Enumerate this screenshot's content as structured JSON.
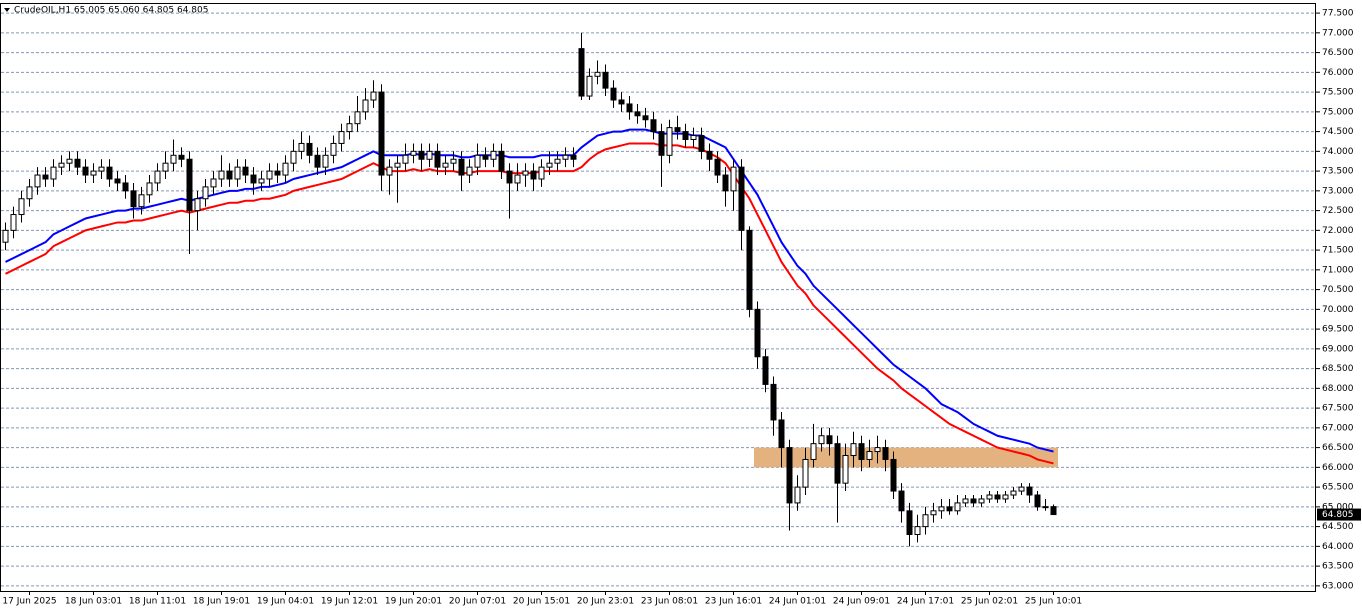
{
  "chart_data": {
    "type": "candlestick",
    "title": "CrudeOIL,H1  65.005 65.060 64.805 64.805",
    "categories": [
      null,
      null,
      null,
      "17 Jun 2025",
      null,
      null,
      null,
      null,
      null,
      null,
      null,
      "18 Jun 03:01",
      null,
      null,
      null,
      null,
      null,
      null,
      null,
      "18 Jun 11:01",
      null,
      null,
      null,
      null,
      null,
      null,
      null,
      "18 Jun 19:01",
      null,
      null,
      null,
      null,
      null,
      null,
      null,
      "19 Jun 04:01",
      null,
      null,
      null,
      null,
      null,
      null,
      null,
      "19 Jun 12:01",
      null,
      null,
      null,
      null,
      null,
      null,
      null,
      "19 Jun 20:01",
      null,
      null,
      null,
      null,
      null,
      null,
      null,
      "20 Jun 07:01",
      null,
      null,
      null,
      null,
      null,
      null,
      null,
      "20 Jun 15:01",
      null,
      null,
      null,
      null,
      null,
      null,
      null,
      "20 Jun 23:01",
      null,
      null,
      null,
      null,
      null,
      null,
      null,
      "23 Jun 08:01",
      null,
      null,
      null,
      null,
      null,
      null,
      null,
      "23 Jun 16:01",
      null,
      null,
      null,
      null,
      null,
      null,
      null,
      "24 Jun 01:01",
      null,
      null,
      null,
      null,
      null,
      null,
      null,
      "24 Jun 09:01",
      null,
      null,
      null,
      null,
      null,
      null,
      null,
      "24 Jun 17:01",
      null,
      null,
      null,
      null,
      null,
      null,
      null,
      "25 Jun 02:01",
      null,
      null,
      null,
      null,
      null,
      null,
      null,
      "25 Jun 10:01"
    ],
    "open": [
      71.7,
      72.0,
      72.4,
      72.8,
      73.1,
      73.4,
      73.3,
      73.6,
      73.7,
      73.8,
      73.6,
      73.4,
      73.5,
      73.6,
      73.3,
      73.2,
      73.0,
      72.6,
      72.9,
      73.2,
      73.5,
      73.7,
      73.9,
      73.8,
      72.5,
      72.8,
      73.1,
      73.3,
      73.5,
      73.3,
      73.6,
      73.4,
      73.2,
      73.3,
      73.5,
      73.4,
      73.7,
      74.0,
      74.2,
      73.9,
      73.6,
      73.9,
      74.2,
      74.5,
      74.7,
      75.0,
      75.3,
      75.5,
      73.4,
      73.6,
      73.7,
      73.9,
      74.0,
      73.8,
      74.0,
      73.6,
      73.7,
      73.8,
      73.4,
      73.6,
      73.9,
      73.8,
      74.0,
      73.5,
      73.2,
      73.4,
      73.5,
      73.3,
      73.6,
      73.7,
      73.8,
      73.9,
      76.6,
      75.4,
      75.9,
      76.0,
      75.6,
      75.3,
      75.2,
      75.0,
      74.9,
      74.8,
      74.5,
      73.9,
      74.6,
      74.5,
      74.3,
      74.4,
      74.0,
      73.8,
      73.4,
      73.0,
      73.6,
      72.0,
      70.0,
      68.8,
      68.1,
      67.2,
      66.5,
      65.1,
      65.5,
      66.2,
      66.6,
      66.8,
      66.6,
      65.6,
      66.3,
      66.6,
      66.2,
      66.4,
      66.5,
      66.2,
      65.4,
      64.9,
      64.3,
      64.5,
      64.8,
      64.9,
      65.0,
      64.9,
      65.1,
      65.2,
      65.1,
      65.2,
      65.3,
      65.2,
      65.3,
      65.4,
      65.5,
      65.3,
      65.0,
      65.005
    ],
    "high": [
      72.2,
      72.6,
      73.0,
      73.3,
      73.6,
      73.6,
      73.8,
      73.9,
      74.0,
      74.0,
      73.8,
      73.7,
      73.8,
      73.8,
      73.5,
      73.4,
      73.2,
      73.1,
      73.4,
      73.7,
      74.0,
      74.3,
      74.1,
      74.0,
      73.0,
      73.3,
      73.5,
      73.9,
      73.7,
      73.8,
      73.8,
      73.6,
      73.5,
      73.7,
      73.7,
      73.9,
      74.3,
      74.5,
      74.4,
      74.1,
      74.1,
      74.4,
      74.7,
      74.9,
      75.4,
      75.6,
      75.8,
      75.7,
      73.8,
      73.9,
      74.2,
      74.2,
      74.2,
      74.2,
      74.2,
      73.9,
      74.0,
      74.0,
      73.8,
      74.2,
      74.1,
      74.2,
      74.2,
      73.7,
      73.7,
      73.7,
      73.7,
      73.8,
      74.0,
      74.0,
      74.1,
      74.1,
      77.0,
      76.1,
      76.3,
      76.2,
      75.8,
      75.5,
      75.4,
      75.2,
      75.1,
      75.0,
      74.7,
      74.8,
      74.9,
      74.7,
      74.6,
      74.6,
      74.2,
      74.0,
      73.6,
      73.8,
      73.8,
      72.1,
      70.2,
      69.0,
      68.3,
      67.4,
      66.7,
      65.8,
      66.5,
      67.1,
      67.0,
      67.0,
      66.8,
      66.6,
      66.9,
      66.8,
      66.7,
      66.8,
      66.7,
      66.4,
      65.6,
      65.1,
      64.8,
      65.0,
      65.1,
      65.2,
      65.2,
      65.3,
      65.3,
      65.3,
      65.3,
      65.4,
      65.4,
      65.4,
      65.5,
      65.6,
      65.6,
      65.4,
      65.2,
      65.06
    ],
    "low": [
      71.5,
      71.8,
      72.2,
      72.6,
      72.9,
      73.1,
      73.1,
      73.4,
      73.5,
      73.4,
      73.2,
      73.2,
      73.3,
      73.1,
      73.0,
      72.8,
      72.3,
      72.4,
      72.7,
      73.0,
      73.3,
      73.5,
      73.6,
      71.4,
      72.0,
      72.6,
      72.9,
      73.1,
      73.1,
      73.1,
      73.2,
      72.9,
      73.0,
      73.1,
      73.2,
      73.2,
      73.5,
      73.8,
      73.7,
      73.4,
      73.4,
      73.7,
      74.0,
      74.3,
      74.5,
      74.8,
      75.1,
      73.0,
      72.9,
      72.7,
      73.5,
      73.7,
      73.5,
      73.6,
      73.4,
      73.4,
      73.5,
      73.0,
      73.2,
      73.4,
      73.6,
      73.6,
      73.3,
      72.3,
      73.0,
      73.1,
      73.0,
      73.1,
      73.4,
      73.5,
      73.6,
      73.6,
      75.3,
      75.3,
      75.7,
      75.4,
      75.1,
      75.0,
      74.8,
      74.7,
      74.6,
      74.3,
      73.1,
      73.7,
      74.3,
      74.1,
      74.1,
      73.8,
      73.5,
      73.2,
      72.6,
      72.5,
      71.5,
      69.8,
      68.5,
      67.9,
      66.8,
      66.0,
      64.4,
      64.9,
      65.3,
      66.0,
      66.4,
      66.3,
      64.6,
      65.4,
      66.0,
      65.9,
      66.0,
      66.1,
      65.9,
      65.2,
      64.6,
      64.0,
      64.1,
      64.3,
      64.6,
      64.7,
      64.8,
      64.8,
      65.0,
      65.0,
      65.0,
      65.1,
      65.1,
      65.1,
      65.2,
      65.3,
      65.1,
      64.9,
      64.9,
      64.805
    ],
    "close": [
      72.0,
      72.4,
      72.8,
      73.1,
      73.4,
      73.3,
      73.6,
      73.7,
      73.8,
      73.6,
      73.4,
      73.5,
      73.6,
      73.3,
      73.2,
      73.0,
      72.6,
      72.9,
      73.2,
      73.5,
      73.7,
      73.9,
      73.8,
      72.5,
      72.8,
      73.1,
      73.3,
      73.5,
      73.3,
      73.6,
      73.4,
      73.2,
      73.3,
      73.5,
      73.4,
      73.7,
      74.0,
      74.2,
      73.9,
      73.6,
      73.9,
      74.2,
      74.5,
      74.7,
      75.0,
      75.3,
      75.5,
      73.4,
      73.6,
      73.7,
      73.9,
      74.0,
      73.8,
      74.0,
      73.6,
      73.7,
      73.8,
      73.4,
      73.6,
      73.9,
      73.8,
      74.0,
      73.5,
      73.2,
      73.4,
      73.5,
      73.3,
      73.6,
      73.7,
      73.8,
      73.9,
      73.8,
      75.4,
      75.9,
      76.0,
      75.6,
      75.3,
      75.2,
      75.0,
      74.9,
      74.8,
      74.5,
      73.9,
      74.6,
      74.5,
      74.3,
      74.4,
      74.0,
      73.8,
      73.4,
      73.0,
      73.6,
      72.0,
      70.0,
      68.8,
      68.1,
      67.2,
      66.5,
      65.1,
      65.5,
      66.2,
      66.6,
      66.8,
      66.6,
      65.6,
      66.3,
      66.6,
      66.2,
      66.4,
      66.5,
      66.2,
      65.4,
      64.9,
      64.3,
      64.5,
      64.8,
      64.9,
      65.0,
      64.9,
      65.1,
      65.2,
      65.1,
      65.2,
      65.3,
      65.2,
      65.3,
      65.4,
      65.5,
      65.3,
      65.0,
      65.005,
      64.805
    ],
    "up_color": "#ffffff",
    "down_color": "#000000",
    "lines": [
      {
        "color": "#0000ff",
        "values": [
          71.2,
          71.3,
          71.4,
          71.5,
          71.6,
          71.7,
          71.9,
          72.0,
          72.1,
          72.2,
          72.3,
          72.35,
          72.4,
          72.45,
          72.5,
          72.5,
          72.55,
          72.55,
          72.6,
          72.65,
          72.7,
          72.75,
          72.8,
          72.75,
          72.8,
          72.85,
          72.9,
          72.95,
          73.0,
          73.0,
          73.05,
          73.05,
          73.1,
          73.1,
          73.15,
          73.2,
          73.3,
          73.35,
          73.4,
          73.45,
          73.5,
          73.55,
          73.6,
          73.7,
          73.8,
          73.9,
          74.0,
          73.9,
          73.9,
          73.9,
          73.9,
          73.95,
          73.9,
          73.95,
          73.9,
          73.9,
          73.9,
          73.85,
          73.85,
          73.9,
          73.9,
          73.9,
          73.9,
          73.85,
          73.85,
          73.85,
          73.85,
          73.9,
          73.9,
          73.9,
          73.9,
          73.9,
          74.1,
          74.25,
          74.4,
          74.45,
          74.5,
          74.5,
          74.55,
          74.55,
          74.55,
          74.5,
          74.45,
          74.45,
          74.45,
          74.45,
          74.4,
          74.4,
          74.3,
          74.2,
          74.1,
          73.8,
          73.5,
          73.2,
          72.9,
          72.5,
          72.1,
          71.7,
          71.4,
          71.1,
          70.9,
          70.6,
          70.4,
          70.2,
          70.0,
          69.8,
          69.6,
          69.4,
          69.2,
          69.0,
          68.8,
          68.6,
          68.45,
          68.3,
          68.15,
          68.0,
          67.8,
          67.6,
          67.5,
          67.4,
          67.25,
          67.1,
          67.0,
          66.9,
          66.8,
          66.75,
          66.7,
          66.65,
          66.6,
          66.5,
          66.45,
          66.4
        ]
      },
      {
        "color": "#ff0000",
        "values": [
          70.9,
          71.0,
          71.1,
          71.2,
          71.3,
          71.4,
          71.6,
          71.7,
          71.8,
          71.9,
          72.0,
          72.05,
          72.1,
          72.15,
          72.2,
          72.2,
          72.25,
          72.25,
          72.3,
          72.35,
          72.4,
          72.45,
          72.5,
          72.45,
          72.5,
          72.55,
          72.6,
          72.65,
          72.7,
          72.7,
          72.75,
          72.75,
          72.8,
          72.8,
          72.85,
          72.9,
          73.0,
          73.05,
          73.1,
          73.15,
          73.2,
          73.25,
          73.3,
          73.4,
          73.5,
          73.6,
          73.7,
          73.6,
          73.5,
          73.5,
          73.5,
          73.55,
          73.5,
          73.55,
          73.5,
          73.5,
          73.5,
          73.45,
          73.45,
          73.5,
          73.5,
          73.5,
          73.5,
          73.45,
          73.45,
          73.45,
          73.45,
          73.5,
          73.5,
          73.5,
          73.5,
          73.5,
          73.6,
          73.8,
          73.95,
          74.05,
          74.1,
          74.15,
          74.2,
          74.2,
          74.2,
          74.2,
          74.15,
          74.15,
          74.15,
          74.1,
          74.1,
          74.05,
          73.95,
          73.85,
          73.7,
          73.4,
          73.1,
          72.8,
          72.4,
          72.0,
          71.6,
          71.2,
          70.9,
          70.6,
          70.4,
          70.1,
          69.9,
          69.7,
          69.5,
          69.3,
          69.1,
          68.9,
          68.7,
          68.5,
          68.35,
          68.2,
          68.0,
          67.85,
          67.7,
          67.55,
          67.4,
          67.25,
          67.1,
          67.0,
          66.9,
          66.8,
          66.7,
          66.6,
          66.5,
          66.45,
          66.4,
          66.35,
          66.3,
          66.2,
          66.15,
          66.1
        ]
      }
    ],
    "zone": {
      "low": 66.0,
      "high": 66.5,
      "color": "#e3b27f"
    },
    "last_price": {
      "value": 64.805,
      "label": "64.805"
    },
    "ylim": [
      62.87,
      77.73
    ],
    "yticks": [
      {
        "value": 63.0,
        "label": "63.000"
      },
      {
        "value": 63.5,
        "label": "63.500"
      },
      {
        "value": 64.0,
        "label": "64.000"
      },
      {
        "value": 64.5,
        "label": "64.500"
      },
      {
        "value": 65.0,
        "label": "65.000"
      },
      {
        "value": 65.5,
        "label": "65.500"
      },
      {
        "value": 66.0,
        "label": "66.000"
      },
      {
        "value": 66.5,
        "label": "66.500"
      },
      {
        "value": 67.0,
        "label": "67.000"
      },
      {
        "value": 67.5,
        "label": "67.500"
      },
      {
        "value": 68.0,
        "label": "68.000"
      },
      {
        "value": 68.5,
        "label": "68.500"
      },
      {
        "value": 69.0,
        "label": "69.000"
      },
      {
        "value": 69.5,
        "label": "69.500"
      },
      {
        "value": 70.0,
        "label": "70.000"
      },
      {
        "value": 70.5,
        "label": "70.500"
      },
      {
        "value": 71.0,
        "label": "71.000"
      },
      {
        "value": 71.5,
        "label": "71.500"
      },
      {
        "value": 72.0,
        "label": "72.000"
      },
      {
        "value": 72.5,
        "label": "72.500"
      },
      {
        "value": 73.0,
        "label": "73.000"
      },
      {
        "value": 73.5,
        "label": "73.500"
      },
      {
        "value": 74.0,
        "label": "74.000"
      },
      {
        "value": 74.5,
        "label": "74.500"
      },
      {
        "value": 75.0,
        "label": "75.000"
      },
      {
        "value": 75.5,
        "label": "75.500"
      },
      {
        "value": 76.0,
        "label": "76.000"
      },
      {
        "value": 76.5,
        "label": "76.500"
      },
      {
        "value": 77.0,
        "label": "77.000"
      },
      {
        "value": 77.5,
        "label": "77.500"
      }
    ],
    "grid": true
  }
}
